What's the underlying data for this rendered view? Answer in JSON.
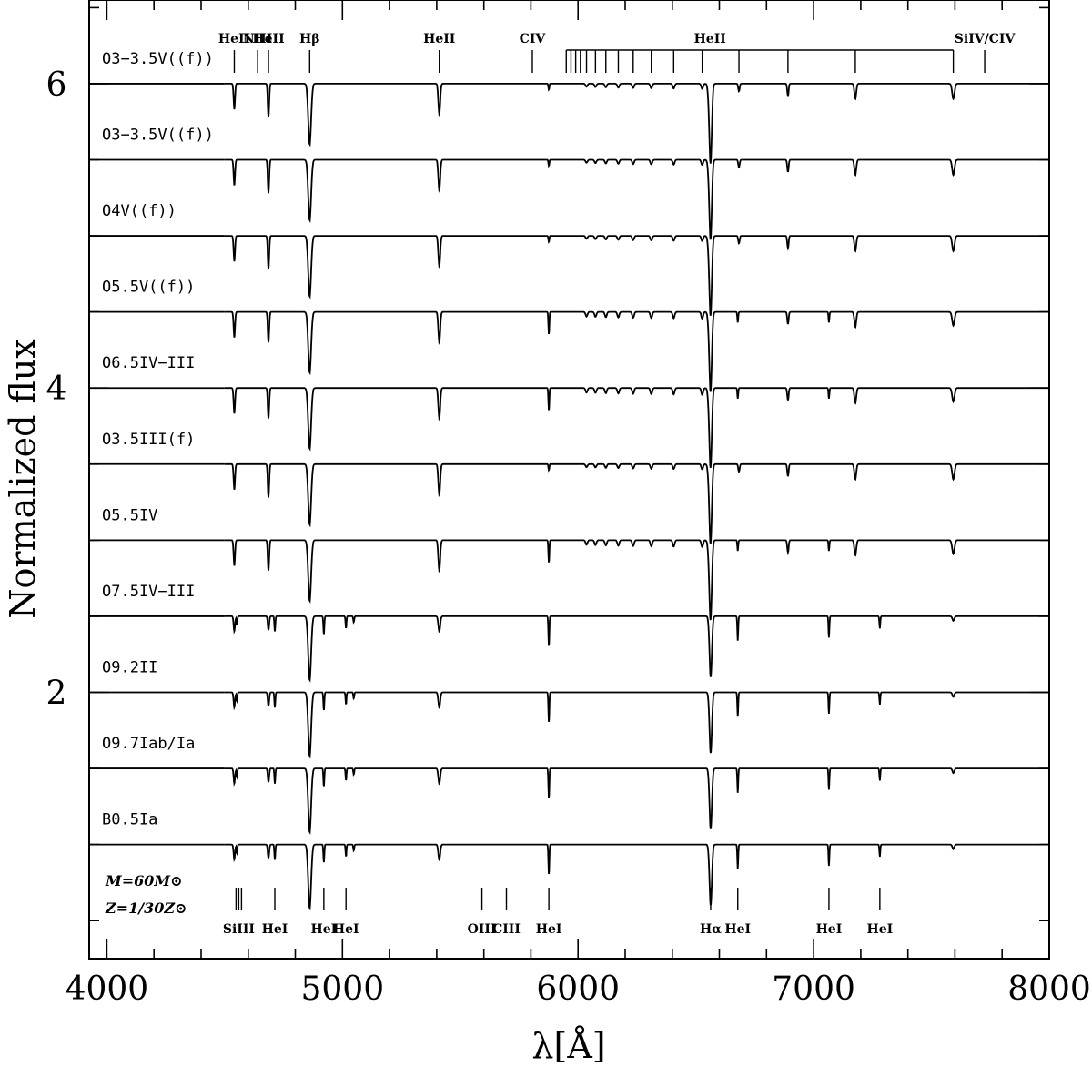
{
  "chart_data": {
    "type": "line",
    "title": "",
    "xlabel": "λ[Å]",
    "ylabel": "Normalized flux",
    "xlim": [
      3925,
      8000
    ],
    "ylim": [
      0.25,
      6.55
    ],
    "x_major_ticks": [
      4000,
      5000,
      6000,
      7000,
      8000
    ],
    "y_major_ticks": [
      2,
      4,
      6
    ],
    "grid": false,
    "series": [
      {
        "name": "O3−3.5V((f))",
        "offset": 6.0,
        "style": "early"
      },
      {
        "name": "O3−3.5V((f))",
        "offset": 5.5,
        "style": "early"
      },
      {
        "name": "O4V((f))",
        "offset": 5.0,
        "style": "early"
      },
      {
        "name": "O5.5V((f))",
        "offset": 4.5,
        "style": "mid"
      },
      {
        "name": "O6.5IV−III",
        "offset": 4.0,
        "style": "mid"
      },
      {
        "name": "O3.5III(f)",
        "offset": 3.5,
        "style": "early"
      },
      {
        "name": "O5.5IV",
        "offset": 3.0,
        "style": "mid"
      },
      {
        "name": "O7.5IV−III",
        "offset": 2.5,
        "style": "late"
      },
      {
        "name": "O9.2II",
        "offset": 2.0,
        "style": "late"
      },
      {
        "name": "O9.7Iab/Ia",
        "offset": 1.5,
        "style": "late"
      },
      {
        "name": "B0.5Ia",
        "offset": 1.0,
        "style": "late"
      }
    ],
    "top_line_labels": [
      {
        "label": "HeII",
        "wavelength": 4541
      },
      {
        "label": "NIII",
        "wavelength": 4640
      },
      {
        "label": "HeII",
        "wavelength": 4686
      },
      {
        "label": "Hβ",
        "wavelength": 4861
      },
      {
        "label": "HeII",
        "wavelength": 5411
      },
      {
        "label": "CIV",
        "wavelength": 5806
      },
      {
        "label": "HeII",
        "wavelength": 6560
      },
      {
        "label": "SiIV/CIV",
        "wavelength": 7726
      }
    ],
    "bottom_line_labels": [
      {
        "label": "SiIII",
        "wavelength": 4560
      },
      {
        "label": "HeI",
        "wavelength": 4713
      },
      {
        "label": "HeI",
        "wavelength": 4921
      },
      {
        "label": "HeI",
        "wavelength": 5015
      },
      {
        "label": "OIII",
        "wavelength": 5592
      },
      {
        "label": "CIII",
        "wavelength": 5696
      },
      {
        "label": "HeI",
        "wavelength": 5876
      },
      {
        "label": "Hα",
        "wavelength": 6563
      },
      {
        "label": "HeI",
        "wavelength": 6678
      },
      {
        "label": "HeI",
        "wavelength": 7065
      },
      {
        "label": "HeI",
        "wavelength": 7281
      }
    ],
    "annotations": [
      "M=60M⊙",
      "Z=1/30Z⊙"
    ],
    "spectrum_start": 4500,
    "spectrum_end": 8000
  }
}
